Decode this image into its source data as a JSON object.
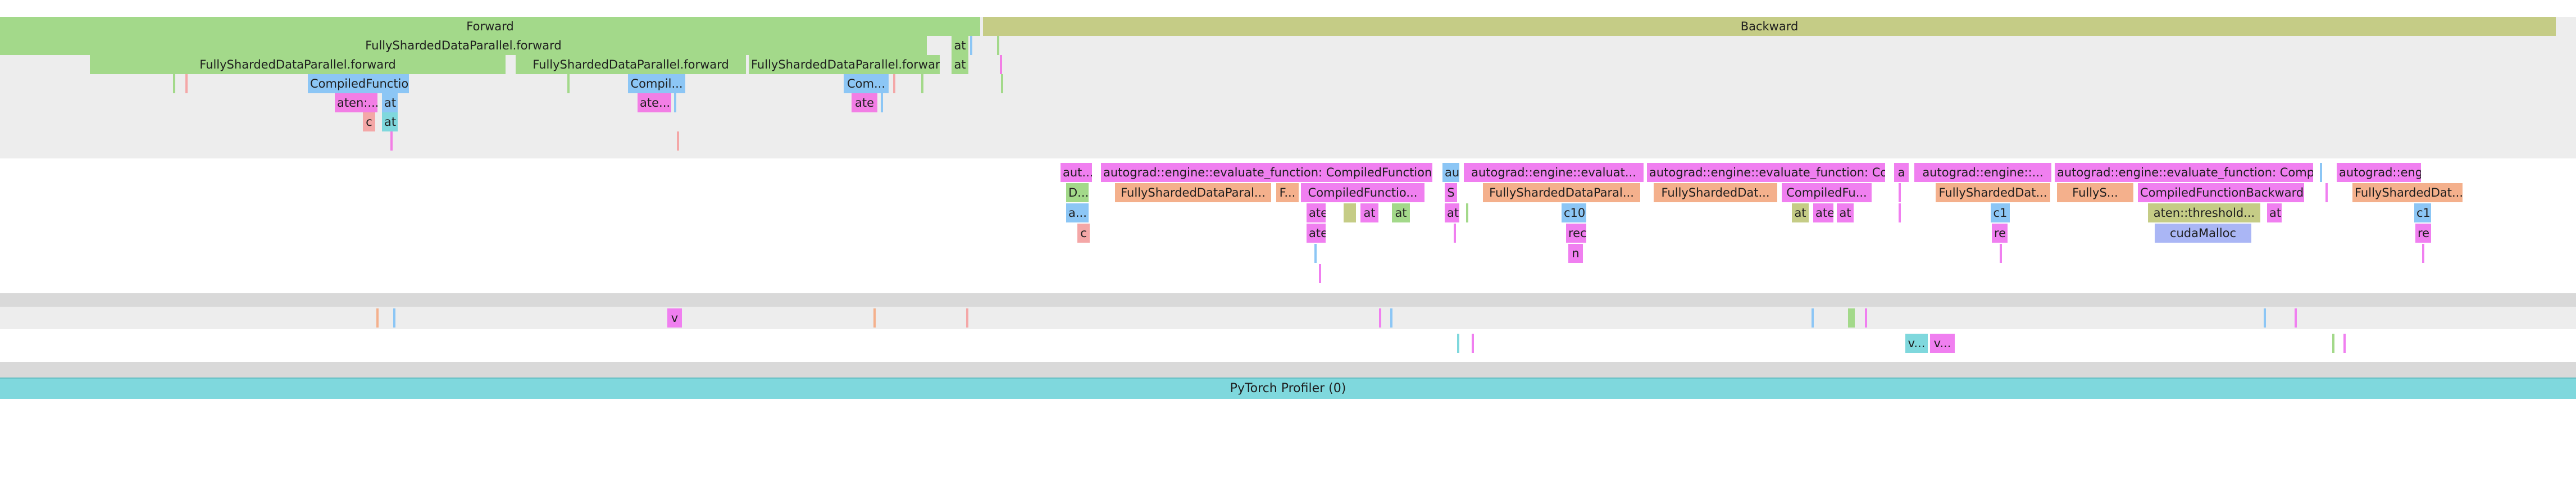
{
  "colors": {
    "forward": "#a3d98a",
    "backward": "#c5cc86",
    "fsdp": "#a3d98a",
    "compiled": "#8cc6f5",
    "aten": "#f27ee5",
    "autograd": "#f07ff0",
    "fsdp_backward": "#f4b08c",
    "threshold": "#c5cc86",
    "cudamalloc": "#aab6f5",
    "profiler": "#7fd8dd"
  },
  "top": {
    "forward": "Forward",
    "backward": "Backward",
    "fsdp_outer": "FullyShardedDataParallel.forward",
    "fsdp_1": "FullyShardedDataParallel.forward",
    "fsdp_2": "FullyShardedDataParallel.forward",
    "fsdp_3": "FullyShardedDataParallel.forward",
    "compiled_1": "CompiledFunction",
    "compiled_2": "Compil...",
    "compiled_3": "Com...",
    "at_a": "at",
    "at_b": "at",
    "aten_1": "aten:...",
    "at_c": "at",
    "c_1": "c",
    "at_d": "at",
    "aten_2": "ate...",
    "aten_3": "ate"
  },
  "middle": {
    "aut": "aut...",
    "d": "D...",
    "a": "a...",
    "c": "c",
    "eval_1": "autograd::engine::evaluate_function: CompiledFunctionBackward",
    "fsdp_par_1": "FullyShardedDataParal...",
    "f": "F...",
    "compiled_fn": "CompiledFunctio...",
    "ate_1": "ate",
    "ate_2": "ate",
    "at_1": "at",
    "at_2": "at",
    "au": "au",
    "s": "S",
    "at_3": "at",
    "eval_2": "autograd::engine::evaluat...",
    "fsdp_par_2": "FullyShardedDataParal...",
    "c10_1": "c10",
    "rec": "rec",
    "n": "n",
    "eval_3": "autograd::engine::evaluate_function: Compi...",
    "fsdp_dat_1": "FullyShardedDat...",
    "compiled_fu": "CompiledFu...",
    "at_4": "at",
    "ate_3": "ate",
    "at_5": "at",
    "a_single": "a",
    "eval_4": "autograd::engine::...",
    "fsdp_dat_2": "FullyShardedDat...",
    "c1_1": "c1",
    "re_1": "re",
    "eval_5": "autograd::engine::evaluate_function: Compi...",
    "fully_s": "FullyS...",
    "compiled_bw": "CompiledFunctionBackward",
    "threshold": "aten::threshold...",
    "cudamalloc": "cudaMalloc",
    "at_6": "at",
    "eval_6": "autograd::engine::...",
    "fsdp_dat_3": "FullyShardedDat...",
    "c1_2": "c1",
    "re_2": "re"
  },
  "lower": {
    "v": "v",
    "v1": "v...",
    "v2": "v..."
  },
  "profiler": {
    "label": "PyTorch Profiler (0)"
  }
}
